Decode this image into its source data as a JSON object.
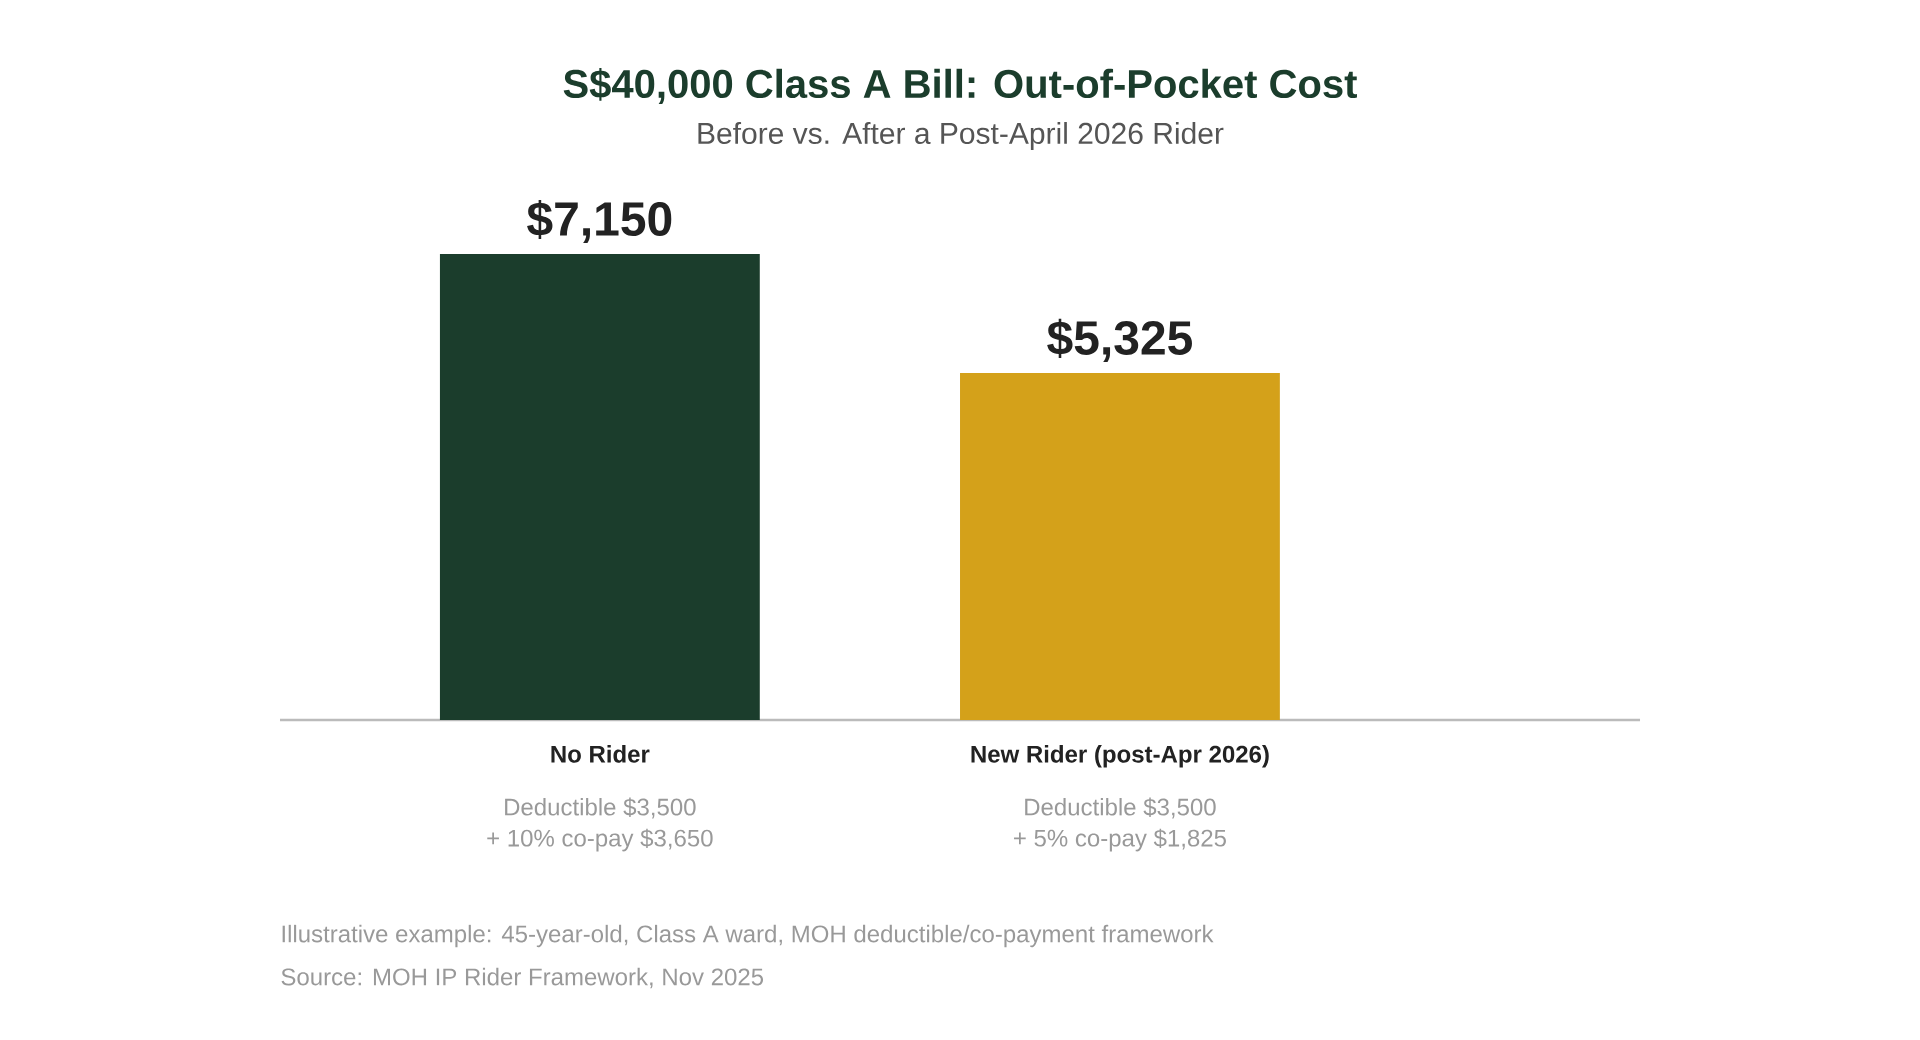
{
  "chart_data": {
    "type": "bar",
    "title": "S$40,000 Class A Bill: Out-of-Pocket Cost",
    "subtitle": "Before vs. After a Post-April 2026 Rider",
    "categories": [
      "No Rider",
      "New Rider (post-Apr 2026)"
    ],
    "values": [
      7150,
      5325
    ],
    "colors": [
      "#1b3d2c",
      "#d4a11a"
    ],
    "value_labels": [
      "$7,150",
      "$5,325"
    ],
    "annotations": [
      "Deductible $3,500",
      "+ 10% co-pay $3,650",
      "Deductible $3,500",
      "+ 5% co-pay $1,825",
      "Illustrative example: 45-year-old, Class A ward, MOH deductible/co-payment framework",
      "Source: MOH IP Rider Framework, Nov 2025"
    ]
  }
}
